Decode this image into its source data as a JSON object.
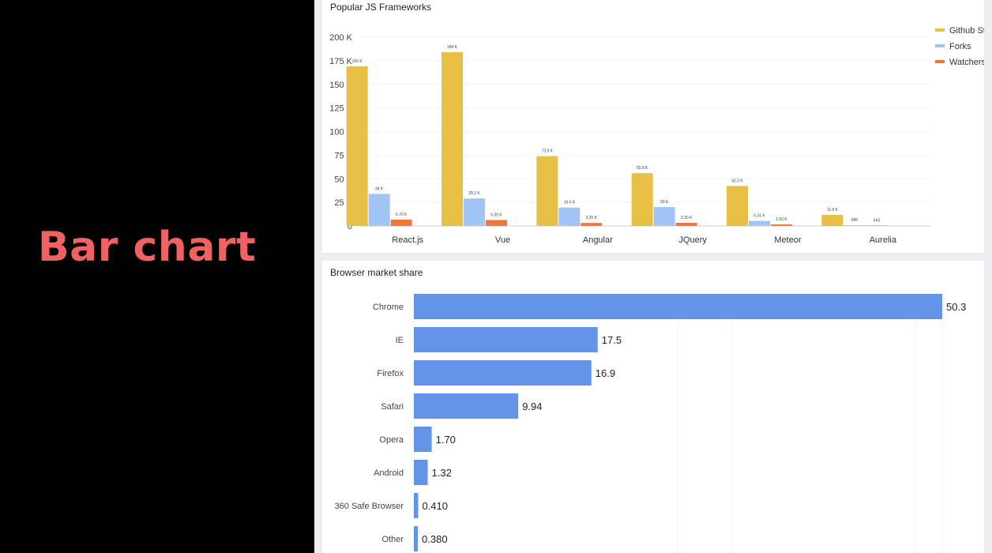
{
  "slide": {
    "title": "Bar chart"
  },
  "colors": {
    "github_stars": "#e8bf45",
    "forks": "#a1c4f7",
    "watchers": "#f0763a",
    "browser_bar": "#6494e8",
    "slide_title": "#f06262"
  },
  "chart_data": [
    {
      "type": "bar",
      "title": "Popular JS Frameworks",
      "categories": [
        "React.js",
        "Vue",
        "Angular",
        "JQuery",
        "Meteor",
        "Aurelia"
      ],
      "series": [
        {
          "name": "Github Stars",
          "color": "#e8bf45",
          "values": [
            169000,
            184000,
            73900,
            55900,
            42300,
            11800
          ],
          "labels": [
            "169 K",
            "184 K",
            "73.9 K",
            "55.9 K",
            "42.3 K",
            "11.8 K"
          ]
        },
        {
          "name": "Forks",
          "color": "#a1c4f7",
          "values": [
            34000,
            29100,
            19500,
            20000,
            5310,
            686
          ],
          "labels": [
            "34 K",
            "29.1 K",
            "19.5 K",
            "20 K",
            "5.31 K",
            "686"
          ]
        },
        {
          "name": "Watchers",
          "color": "#f0763a",
          "values": [
            6700,
            6300,
            3200,
            3300,
            1600,
            443
          ],
          "labels": [
            "6.70 K",
            "6.30 K",
            "3.20 K",
            "3.30 K",
            "1.60 K",
            "443"
          ]
        }
      ],
      "ylim": [
        0,
        200000
      ],
      "yticks": [
        "0",
        "25 K",
        "50 K",
        "75 K",
        "100 K",
        "125 K",
        "150 K",
        "175 K",
        "200 K"
      ],
      "legend_position": "right",
      "grid": true
    },
    {
      "type": "bar",
      "orientation": "horizontal",
      "title": "Browser market share",
      "categories": [
        "Chrome",
        "IE",
        "Firefox",
        "Safari",
        "Opera",
        "Android",
        "360 Safe Browser",
        "Other"
      ],
      "values": [
        50.3,
        17.5,
        16.9,
        9.94,
        1.7,
        1.32,
        0.41,
        0.38
      ],
      "labels": [
        "50.3",
        "17.5",
        "16.9",
        "9.94",
        "1.70",
        "1.32",
        "0.410",
        "0.380"
      ],
      "xlim": [
        0,
        50.3
      ],
      "grid": true
    }
  ]
}
